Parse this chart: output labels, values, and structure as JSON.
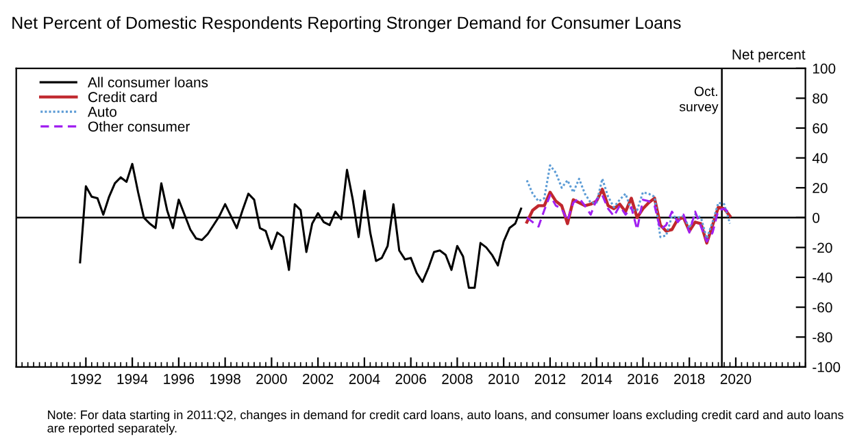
{
  "chart_data": {
    "type": "line",
    "title": "Net Percent of Domestic Respondents Reporting Stronger Demand for Consumer Loans",
    "ylabel": "Net percent",
    "xlim": [
      1989,
      2023
    ],
    "xticks": [
      1992,
      1994,
      1996,
      1998,
      2000,
      2002,
      2004,
      2006,
      2008,
      2010,
      2012,
      2014,
      2016,
      2018,
      2020
    ],
    "ylim": [
      -100,
      100
    ],
    "yticks": [
      -100,
      -80,
      -60,
      -40,
      -20,
      0,
      20,
      40,
      60,
      80,
      100
    ],
    "grid": false,
    "legend": "top left",
    "ref_lines": [
      {
        "axis": "y",
        "value": 0,
        "color": "#000000"
      },
      {
        "axis": "x",
        "value": 2019.4,
        "label": "Oct.\nsurvey",
        "color": "#000000"
      }
    ],
    "annotations": [
      "Note: For data starting in 2011:Q2, changes in demand for credit card loans, auto loans, and consumer loans excluding credit card and auto loans are reported separately."
    ],
    "series": [
      {
        "name": "All consumer loans",
        "color": "#000000",
        "line_style": "solid",
        "x": [
          1991.75,
          1992.0,
          1992.25,
          1992.5,
          1992.75,
          1993.0,
          1993.25,
          1993.5,
          1993.75,
          1994.0,
          1994.25,
          1994.5,
          1994.75,
          1995.0,
          1995.25,
          1995.5,
          1995.75,
          1996.0,
          1996.25,
          1996.5,
          1996.75,
          1997.0,
          1997.25,
          1997.5,
          1997.75,
          1998.0,
          1998.25,
          1998.5,
          1998.75,
          1999.0,
          1999.25,
          1999.5,
          1999.75,
          2000.0,
          2000.25,
          2000.5,
          2000.75,
          2001.0,
          2001.25,
          2001.5,
          2001.75,
          2002.0,
          2002.25,
          2002.5,
          2002.75,
          2003.0,
          2003.25,
          2003.5,
          2003.75,
          2004.0,
          2004.25,
          2004.5,
          2004.75,
          2005.0,
          2005.25,
          2005.5,
          2005.75,
          2006.0,
          2006.25,
          2006.5,
          2006.75,
          2007.0,
          2007.25,
          2007.5,
          2007.75,
          2008.0,
          2008.25,
          2008.5,
          2008.75,
          2009.0,
          2009.25,
          2009.5,
          2009.75,
          2010.0,
          2010.25,
          2010.5,
          2010.75
        ],
        "values": [
          -30,
          21,
          14,
          13,
          2,
          14,
          23,
          27,
          24,
          36,
          17,
          0,
          -4,
          -7,
          23,
          5,
          -7,
          12,
          2,
          -8,
          -14,
          -15,
          -11,
          -5,
          1,
          9,
          1,
          -7,
          5,
          16,
          12,
          -7,
          -9,
          -21,
          -10,
          -13,
          -35,
          9,
          5,
          -23,
          -4,
          3,
          -3,
          -5,
          4,
          -1,
          32,
          12,
          -13,
          18,
          -10,
          -29,
          -27,
          -19,
          9,
          -22,
          -28,
          -27,
          -37,
          -43,
          -34,
          -23,
          -22,
          -25,
          -35,
          -19,
          -26,
          -47,
          -47,
          -17,
          -20,
          -25,
          -32,
          -16,
          -7,
          -4,
          6
        ]
      },
      {
        "name": "Credit card",
        "color": "#c0272d",
        "line_style": "solid",
        "x": [
          2011.0,
          2011.25,
          2011.5,
          2011.75,
          2012.0,
          2012.25,
          2012.5,
          2012.75,
          2013.0,
          2013.25,
          2013.5,
          2013.75,
          2014.0,
          2014.25,
          2014.5,
          2014.75,
          2015.0,
          2015.25,
          2015.5,
          2015.75,
          2016.0,
          2016.25,
          2016.5,
          2016.75,
          2017.0,
          2017.25,
          2017.5,
          2017.75,
          2018.0,
          2018.25,
          2018.5,
          2018.75,
          2019.0,
          2019.25,
          2019.5,
          2019.75
        ],
        "values": [
          -3,
          5,
          8,
          8,
          17,
          11,
          8,
          -4,
          12,
          10,
          8,
          9,
          11,
          19,
          8,
          6,
          9,
          4,
          13,
          0,
          6,
          10,
          13,
          -5,
          -9,
          -8,
          -1,
          0,
          -9,
          -3,
          -4,
          -17,
          -5,
          7,
          6,
          1
        ]
      },
      {
        "name": "Auto",
        "color": "#5b9bd5",
        "line_style": "dotted",
        "x": [
          2011.0,
          2011.25,
          2011.5,
          2011.75,
          2012.0,
          2012.25,
          2012.5,
          2012.75,
          2013.0,
          2013.25,
          2013.5,
          2013.75,
          2014.0,
          2014.25,
          2014.5,
          2014.75,
          2015.0,
          2015.25,
          2015.5,
          2015.75,
          2016.0,
          2016.25,
          2016.5,
          2016.75,
          2017.0,
          2017.25,
          2017.5,
          2017.75,
          2018.0,
          2018.25,
          2018.5,
          2018.75,
          2019.0,
          2019.25,
          2019.5,
          2019.75
        ],
        "values": [
          25,
          16,
          11,
          13,
          35,
          30,
          20,
          25,
          17,
          26,
          16,
          10,
          10,
          26,
          14,
          7,
          12,
          16,
          5,
          5,
          17,
          16,
          14,
          -13,
          -12,
          1,
          0,
          1,
          -7,
          2,
          0,
          -14,
          -3,
          10,
          9,
          -4
        ]
      },
      {
        "name": "Other consumer",
        "color": "#a020f0",
        "line_style": "dashed",
        "x": [
          2011.0,
          2011.25,
          2011.5,
          2011.75,
          2012.0,
          2012.25,
          2012.5,
          2012.75,
          2013.0,
          2013.25,
          2013.5,
          2013.75,
          2014.0,
          2014.25,
          2014.5,
          2014.75,
          2015.0,
          2015.25,
          2015.5,
          2015.75,
          2016.0,
          2016.25,
          2016.5,
          2016.75,
          2017.0,
          2017.25,
          2017.5,
          2017.75,
          2018.0,
          2018.25,
          2018.5,
          2018.75,
          2019.0,
          2019.25,
          2019.5,
          2019.75
        ],
        "values": [
          0,
          -3,
          -6,
          5,
          15,
          8,
          6,
          -2,
          10,
          13,
          8,
          2,
          12,
          15,
          6,
          1,
          8,
          2,
          7,
          -8,
          12,
          11,
          8,
          -8,
          -5,
          4,
          -3,
          2,
          -10,
          4,
          -6,
          -16,
          -10,
          5,
          6,
          3
        ]
      }
    ]
  }
}
